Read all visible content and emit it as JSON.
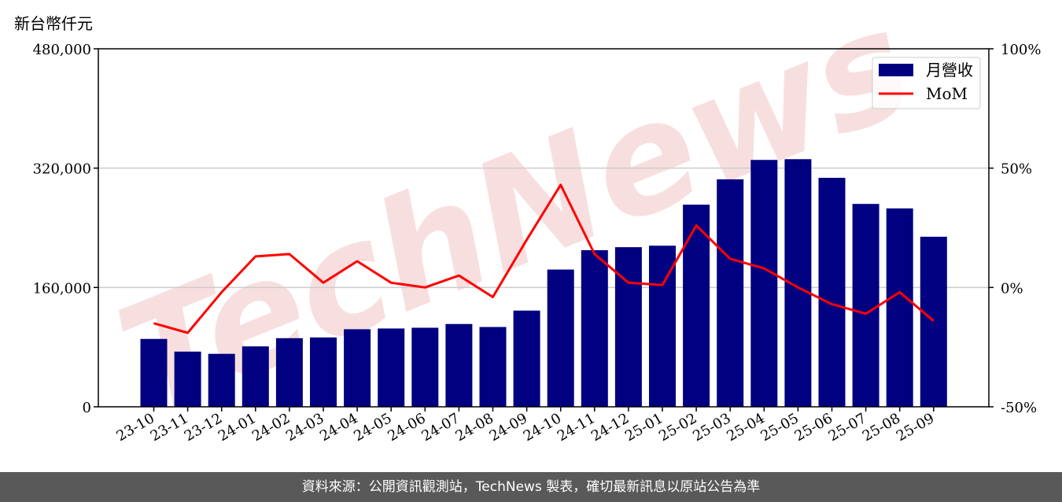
{
  "header": {
    "unit": "新台幣仟元"
  },
  "footer": {
    "source": "資料來源：公開資訊觀測站，TechNews 製表，確切最新訊息以原站公告為準"
  },
  "watermark": {
    "text": "TechNews"
  },
  "colors": {
    "bar": "#000080",
    "line": "#ff0000",
    "watermark": "#f2c4c4"
  },
  "chart_data": {
    "type": "bar",
    "categories": [
      "23-10",
      "23-11",
      "23-12",
      "24-01",
      "24-02",
      "24-03",
      "24-04",
      "24-05",
      "24-06",
      "24-07",
      "24-08",
      "24-09",
      "24-10",
      "24-11",
      "24-12",
      "25-01",
      "25-02",
      "25-03",
      "25-04",
      "25-05",
      "25-06",
      "25-07",
      "25-08",
      "25-09"
    ],
    "series": [
      {
        "name": "月營收",
        "type": "bar",
        "axis": "left",
        "values": [
          91000,
          74000,
          71000,
          81000,
          92000,
          93000,
          104000,
          105000,
          106000,
          111000,
          107000,
          129000,
          184000,
          210000,
          214000,
          216000,
          271000,
          305000,
          331000,
          332000,
          307000,
          272000,
          266000,
          228000
        ]
      },
      {
        "name": "MoM",
        "type": "line",
        "axis": "right",
        "values": [
          -15,
          -19,
          -2,
          13,
          14,
          2,
          11,
          2,
          0,
          5,
          -4,
          20,
          43,
          14,
          2,
          1,
          26,
          12,
          8,
          0,
          -7,
          -11,
          -2,
          -14
        ]
      }
    ],
    "y_left": {
      "min": 0,
      "max": 480000,
      "ticks": [
        "0",
        "160,000",
        "320,000",
        "480,000"
      ]
    },
    "y_right": {
      "min": -50,
      "max": 100,
      "ticks": [
        "-50%",
        "0%",
        "50%",
        "100%"
      ]
    },
    "grid": "horizontal",
    "legend": "top-right"
  }
}
